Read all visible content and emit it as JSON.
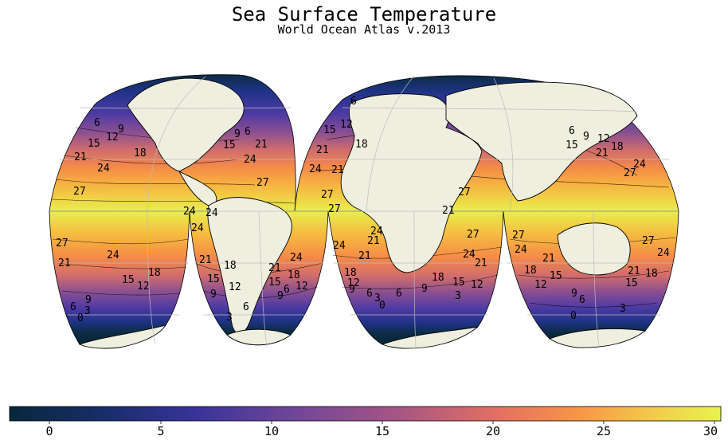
{
  "title": "Sea Surface Temperature",
  "subtitle": "World Ocean Atlas v.2013",
  "colorbar": {
    "min": -2,
    "max": 30,
    "ticks": [
      "0",
      "5",
      "10",
      "15",
      "20",
      "25",
      "30"
    ],
    "tick_values": [
      0,
      5,
      10,
      15,
      20,
      25,
      30
    ],
    "colors": [
      "#08283c",
      "#1e3184",
      "#4f37a0",
      "#8a4f91",
      "#c65f74",
      "#f08b4a",
      "#f6b443",
      "#e7f44f"
    ]
  },
  "colors": {
    "land": "#efefdf",
    "coastline": "#000000",
    "graticule": "#bbbbbb"
  },
  "contour_levels": [
    0,
    3,
    6,
    9,
    12,
    15,
    18,
    21,
    24,
    27
  ],
  "contour_labels": {
    "north": [
      "6",
      "9",
      "12",
      "15",
      "18",
      "21",
      "24",
      "27"
    ],
    "south": [
      "27",
      "24",
      "21",
      "18",
      "15",
      "12",
      "9",
      "6",
      "3",
      "0"
    ]
  },
  "lobes": [
    {
      "name": "north-america-pacific",
      "labels_north": [
        "6",
        "9",
        "12",
        "15",
        "18",
        "21",
        "24",
        "27"
      ]
    },
    {
      "name": "north-atlantic",
      "labels_north": [
        "6",
        "9",
        "12",
        "15",
        "18",
        "21",
        "24",
        "27"
      ]
    },
    {
      "name": "asia-pacific",
      "labels_north": [
        "6",
        "9",
        "12",
        "15",
        "18",
        "21",
        "24",
        "27"
      ]
    },
    {
      "name": "south-pacific",
      "labels_south": [
        "27",
        "24",
        "21",
        "18",
        "15",
        "12",
        "9",
        "6",
        "3",
        "0"
      ]
    },
    {
      "name": "south-atlantic",
      "labels_south": [
        "24",
        "21",
        "18",
        "15",
        "12",
        "9",
        "6",
        "3",
        "0"
      ]
    },
    {
      "name": "indian-ocean",
      "labels_south": [
        "27",
        "24",
        "21",
        "18",
        "15",
        "12",
        "9",
        "6",
        "3",
        "0"
      ]
    }
  ]
}
